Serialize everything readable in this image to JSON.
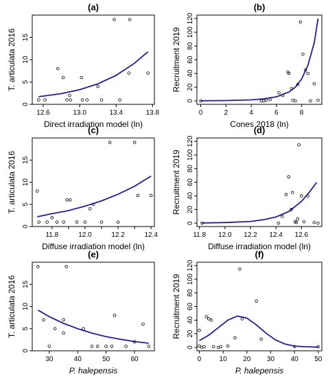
{
  "chart_data": [
    {
      "id": "a",
      "type": "scatter",
      "title": "(a)",
      "xlabel": "Direct irradiation model (ln)",
      "xlabel_italic": false,
      "ylabel": "T. articulata 2016",
      "xlim": [
        12.48,
        13.82
      ],
      "ylim": [
        0,
        20
      ],
      "xticks": [
        12.6,
        13.0,
        13.4,
        13.8
      ],
      "xtick_labels": [
        "12.6",
        "13.0",
        "13.4",
        "13.8"
      ],
      "yticks": [
        0,
        5,
        10,
        15
      ],
      "ytick_labels": [
        "0",
        "5",
        "10",
        "15"
      ],
      "points": [
        {
          "x": 12.55,
          "y": 1
        },
        {
          "x": 12.62,
          "y": 1
        },
        {
          "x": 12.76,
          "y": 8
        },
        {
          "x": 12.82,
          "y": 6
        },
        {
          "x": 12.86,
          "y": 1
        },
        {
          "x": 12.89,
          "y": 2
        },
        {
          "x": 12.9,
          "y": 1
        },
        {
          "x": 13.02,
          "y": 6
        },
        {
          "x": 13.03,
          "y": 1
        },
        {
          "x": 13.08,
          "y": 1
        },
        {
          "x": 13.2,
          "y": 4
        },
        {
          "x": 13.24,
          "y": 1
        },
        {
          "x": 13.38,
          "y": 19
        },
        {
          "x": 13.44,
          "y": 1
        },
        {
          "x": 13.54,
          "y": 7
        },
        {
          "x": 13.55,
          "y": 19
        },
        {
          "x": 13.75,
          "y": 7
        }
      ],
      "fit": {
        "x": [
          12.55,
          12.8,
          13.0,
          13.2,
          13.4,
          13.6,
          13.75
        ],
        "y": [
          1.7,
          2.4,
          3.3,
          4.6,
          6.5,
          9.2,
          11.8
        ]
      }
    },
    {
      "id": "b",
      "type": "scatter",
      "title": "(b)",
      "xlabel": "Cones 2018 (ln)",
      "xlabel_italic": false,
      "ylabel": "Recruitment 2019",
      "xlim": [
        -0.3,
        9.6
      ],
      "ylim": [
        -5,
        125
      ],
      "xticks": [
        0,
        2,
        4,
        6,
        8
      ],
      "xtick_labels": [
        "0",
        "2",
        "4",
        "6",
        "8"
      ],
      "yticks": [
        0,
        20,
        40,
        60,
        80,
        100,
        120
      ],
      "ytick_labels": [
        "0",
        "20",
        "40",
        "60",
        "80",
        "100",
        "120"
      ],
      "points": [
        {
          "x": 0,
          "y": 0
        },
        {
          "x": 4.8,
          "y": 0
        },
        {
          "x": 5.0,
          "y": 0
        },
        {
          "x": 5.2,
          "y": 1
        },
        {
          "x": 5.5,
          "y": 2
        },
        {
          "x": 6.2,
          "y": 12
        },
        {
          "x": 6.5,
          "y": 8
        },
        {
          "x": 6.9,
          "y": 42
        },
        {
          "x": 7.0,
          "y": 40
        },
        {
          "x": 7.2,
          "y": 18
        },
        {
          "x": 7.3,
          "y": 1
        },
        {
          "x": 7.5,
          "y": 0
        },
        {
          "x": 7.7,
          "y": 24
        },
        {
          "x": 7.9,
          "y": 115
        },
        {
          "x": 8.1,
          "y": 68
        },
        {
          "x": 8.3,
          "y": 45
        },
        {
          "x": 8.5,
          "y": 40
        },
        {
          "x": 8.7,
          "y": 0
        },
        {
          "x": 9.0,
          "y": 25
        },
        {
          "x": 9.3,
          "y": 1
        }
      ],
      "fit": {
        "x": [
          0,
          2,
          4,
          5,
          6,
          7,
          7.5,
          8,
          8.5,
          9,
          9.3
        ],
        "y": [
          0.2,
          0.5,
          1.5,
          3,
          6,
          13,
          20,
          32,
          52,
          85,
          120
        ]
      }
    },
    {
      "id": "c",
      "type": "scatter",
      "title": "(c)",
      "xlabel": "Diffuse irradiation model (ln)",
      "xlabel_italic": false,
      "ylabel": "T. articulata 2016",
      "xlim": [
        11.68,
        12.42
      ],
      "ylim": [
        0,
        20
      ],
      "xticks": [
        11.8,
        11.9,
        12.0,
        12.1,
        12.2,
        12.3,
        12.4
      ],
      "xtick_labels": [
        "11.8",
        "",
        "12.0",
        "",
        "12.2",
        "",
        "12.4"
      ],
      "yticks": [
        0,
        5,
        10,
        15
      ],
      "ytick_labels": [
        "0",
        "5",
        "10",
        "15"
      ],
      "points": [
        {
          "x": 11.71,
          "y": 8
        },
        {
          "x": 11.72,
          "y": 1
        },
        {
          "x": 11.77,
          "y": 1
        },
        {
          "x": 11.8,
          "y": 2
        },
        {
          "x": 11.83,
          "y": 1
        },
        {
          "x": 11.87,
          "y": 1
        },
        {
          "x": 11.89,
          "y": 6
        },
        {
          "x": 11.91,
          "y": 6
        },
        {
          "x": 11.95,
          "y": 1
        },
        {
          "x": 12.0,
          "y": 1
        },
        {
          "x": 12.03,
          "y": 4
        },
        {
          "x": 12.05,
          "y": 5
        },
        {
          "x": 12.1,
          "y": 1
        },
        {
          "x": 12.15,
          "y": 19
        },
        {
          "x": 12.2,
          "y": 1
        },
        {
          "x": 12.3,
          "y": 19
        },
        {
          "x": 12.32,
          "y": 7
        },
        {
          "x": 12.4,
          "y": 7
        }
      ],
      "fit": {
        "x": [
          11.71,
          11.8,
          11.9,
          12.0,
          12.1,
          12.2,
          12.3,
          12.4
        ],
        "y": [
          2.2,
          2.9,
          3.6,
          4.6,
          5.8,
          7.3,
          9.1,
          11.4
        ]
      }
    },
    {
      "id": "d",
      "type": "scatter",
      "title": "(d)",
      "xlabel": "Diffuse irradiation model (ln)",
      "xlabel_italic": false,
      "ylabel": "Recruitment 2019",
      "xlim": [
        11.78,
        12.76
      ],
      "ylim": [
        -5,
        125
      ],
      "xticks": [
        11.8,
        12.0,
        12.2,
        12.4,
        12.6
      ],
      "xtick_labels": [
        "11.8",
        "12.0",
        "12.2",
        "12.4",
        "12.6"
      ],
      "yticks": [
        0,
        20,
        40,
        60,
        80,
        100,
        120
      ],
      "ytick_labels": [
        "0",
        "20",
        "40",
        "60",
        "80",
        "100",
        "120"
      ],
      "points": [
        {
          "x": 11.82,
          "y": 0
        },
        {
          "x": 12.42,
          "y": 0
        },
        {
          "x": 12.45,
          "y": 10
        },
        {
          "x": 12.48,
          "y": 42
        },
        {
          "x": 12.5,
          "y": 68
        },
        {
          "x": 12.52,
          "y": 20
        },
        {
          "x": 12.53,
          "y": 45
        },
        {
          "x": 12.55,
          "y": 2
        },
        {
          "x": 12.56,
          "y": 1
        },
        {
          "x": 12.57,
          "y": 6
        },
        {
          "x": 12.58,
          "y": 115
        },
        {
          "x": 12.6,
          "y": 40
        },
        {
          "x": 12.62,
          "y": 2
        },
        {
          "x": 12.65,
          "y": 40
        },
        {
          "x": 12.7,
          "y": 1
        },
        {
          "x": 12.73,
          "y": 0
        }
      ],
      "fit": {
        "x": [
          11.82,
          12.0,
          12.2,
          12.3,
          12.4,
          12.5,
          12.6,
          12.66,
          12.72
        ],
        "y": [
          0.2,
          0.8,
          2.5,
          5,
          9,
          17,
          32,
          45,
          60
        ]
      }
    },
    {
      "id": "e",
      "type": "scatter",
      "title": "(e)",
      "xlabel": "P. halepensis",
      "xlabel_italic": true,
      "ylabel": "T. articulata 2016",
      "xlim": [
        24,
        67
      ],
      "ylim": [
        0,
        20
      ],
      "xticks": [
        30,
        40,
        50,
        60
      ],
      "xtick_labels": [
        "30",
        "40",
        "50",
        "60"
      ],
      "yticks": [
        0,
        5,
        10,
        15
      ],
      "ytick_labels": [
        "0",
        "5",
        "10",
        "15"
      ],
      "points": [
        {
          "x": 26,
          "y": 19
        },
        {
          "x": 28,
          "y": 7
        },
        {
          "x": 30,
          "y": 1
        },
        {
          "x": 32,
          "y": 5
        },
        {
          "x": 35,
          "y": 7
        },
        {
          "x": 35,
          "y": 4
        },
        {
          "x": 36,
          "y": 19
        },
        {
          "x": 42,
          "y": 5
        },
        {
          "x": 45,
          "y": 1
        },
        {
          "x": 47,
          "y": 1
        },
        {
          "x": 50,
          "y": 1
        },
        {
          "x": 52,
          "y": 1
        },
        {
          "x": 53,
          "y": 8
        },
        {
          "x": 57,
          "y": 1
        },
        {
          "x": 60,
          "y": 2
        },
        {
          "x": 63,
          "y": 6
        },
        {
          "x": 65,
          "y": 1
        }
      ],
      "fit": {
        "x": [
          26,
          30,
          35,
          40,
          45,
          50,
          55,
          60,
          65
        ],
        "y": [
          9.2,
          7.7,
          6.2,
          5.0,
          4.0,
          3.2,
          2.6,
          2.1,
          1.7
        ]
      }
    },
    {
      "id": "f",
      "type": "scatter",
      "title": "(f)",
      "xlabel": "P. halepensis",
      "xlabel_italic": true,
      "ylabel": "Recruitment 2019",
      "xlim": [
        -1,
        51.5
      ],
      "ylim": [
        -5,
        125
      ],
      "xticks": [
        0,
        10,
        20,
        30,
        40,
        50
      ],
      "xtick_labels": [
        "0",
        "10",
        "20",
        "30",
        "40",
        "50"
      ],
      "yticks": [
        0,
        20,
        40,
        60,
        80,
        100,
        120
      ],
      "ytick_labels": [
        "0",
        "20",
        "40",
        "60",
        "80",
        "100",
        "120"
      ],
      "points": [
        {
          "x": 0,
          "y": 25
        },
        {
          "x": 0,
          "y": 2
        },
        {
          "x": 1,
          "y": 0
        },
        {
          "x": 2,
          "y": 1
        },
        {
          "x": 3,
          "y": 45
        },
        {
          "x": 4,
          "y": 42
        },
        {
          "x": 5,
          "y": 40
        },
        {
          "x": 6,
          "y": 1
        },
        {
          "x": 8,
          "y": 0
        },
        {
          "x": 9,
          "y": 1
        },
        {
          "x": 12,
          "y": 2
        },
        {
          "x": 15,
          "y": 14
        },
        {
          "x": 17,
          "y": 115
        },
        {
          "x": 18,
          "y": 42
        },
        {
          "x": 24,
          "y": 68
        },
        {
          "x": 26,
          "y": 12
        },
        {
          "x": 40,
          "y": 1
        },
        {
          "x": 50,
          "y": 1
        }
      ],
      "fit": {
        "x": [
          0,
          4,
          8,
          12,
          16,
          20,
          24,
          28,
          32,
          36,
          40,
          44,
          50
        ],
        "y": [
          10,
          18,
          29,
          40,
          46,
          43,
          33,
          21,
          11,
          5,
          2,
          1,
          0.3
        ]
      }
    }
  ],
  "colors": {
    "fit_line": "#1c1cb8",
    "points": "#000000",
    "axis": "#000000"
  }
}
